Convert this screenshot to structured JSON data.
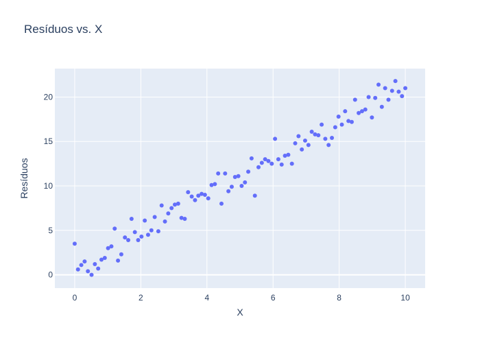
{
  "chart_data": {
    "type": "scatter",
    "title": "Resíduos vs. X",
    "xlabel": "X",
    "ylabel": "Resíduos",
    "xlim": [
      -0.6,
      10.6
    ],
    "ylim": [
      -1.5,
      23.2
    ],
    "x_ticks": [
      0,
      2,
      4,
      6,
      8,
      10
    ],
    "y_ticks": [
      0,
      5,
      10,
      15,
      20
    ],
    "grid": true,
    "colors": {
      "plot_bg": "#e5ecf6",
      "grid": "#ffffff",
      "marker": "#636efa",
      "text": "#2a3f5f"
    },
    "series": [
      {
        "x": [
          0.0,
          0.1,
          0.2,
          0.3,
          0.4,
          0.51,
          0.61,
          0.71,
          0.81,
          0.91,
          1.01,
          1.11,
          1.21,
          1.31,
          1.41,
          1.52,
          1.62,
          1.72,
          1.82,
          1.92,
          2.02,
          2.12,
          2.22,
          2.32,
          2.42,
          2.53,
          2.63,
          2.73,
          2.83,
          2.93,
          3.03,
          3.13,
          3.23,
          3.33,
          3.43,
          3.54,
          3.64,
          3.74,
          3.84,
          3.94,
          4.04,
          4.14,
          4.24,
          4.34,
          4.44,
          4.55,
          4.65,
          4.75,
          4.85,
          4.95,
          5.05,
          5.15,
          5.25,
          5.35,
          5.45,
          5.56,
          5.66,
          5.76,
          5.86,
          5.96,
          6.06,
          6.16,
          6.26,
          6.36,
          6.46,
          6.57,
          6.67,
          6.77,
          6.87,
          6.97,
          7.07,
          7.17,
          7.27,
          7.37,
          7.47,
          7.58,
          7.68,
          7.78,
          7.88,
          7.98,
          8.08,
          8.18,
          8.28,
          8.38,
          8.48,
          8.59,
          8.69,
          8.79,
          8.89,
          8.99,
          9.09,
          9.19,
          9.29,
          9.39,
          9.49,
          9.6,
          9.7,
          9.8,
          9.9,
          10.0
        ],
        "y": [
          3.5,
          0.6,
          1.1,
          1.5,
          0.4,
          0.0,
          1.2,
          0.7,
          1.7,
          1.9,
          3.0,
          3.2,
          5.2,
          1.6,
          2.3,
          4.2,
          3.9,
          6.3,
          4.8,
          3.9,
          4.3,
          6.1,
          4.5,
          5.0,
          6.5,
          4.9,
          7.8,
          6.0,
          6.9,
          7.5,
          7.9,
          8.0,
          6.4,
          6.3,
          9.3,
          8.8,
          8.4,
          8.9,
          9.1,
          9.0,
          8.6,
          10.1,
          10.2,
          11.4,
          8.0,
          11.4,
          9.4,
          9.9,
          11.0,
          11.1,
          10.0,
          10.4,
          11.6,
          13.1,
          8.9,
          12.1,
          12.6,
          13.0,
          12.8,
          12.5,
          15.3,
          13.0,
          12.4,
          13.4,
          13.5,
          12.5,
          14.8,
          15.6,
          14.1,
          15.1,
          14.6,
          16.1,
          15.8,
          15.7,
          16.9,
          15.3,
          14.6,
          15.4,
          16.6,
          17.8,
          16.9,
          18.4,
          17.3,
          17.2,
          19.7,
          18.2,
          18.4,
          18.6,
          20.0,
          17.7,
          19.9,
          21.4,
          18.9,
          21.0,
          19.7,
          20.7,
          21.8,
          20.6,
          20.1,
          21.0
        ]
      }
    ]
  }
}
